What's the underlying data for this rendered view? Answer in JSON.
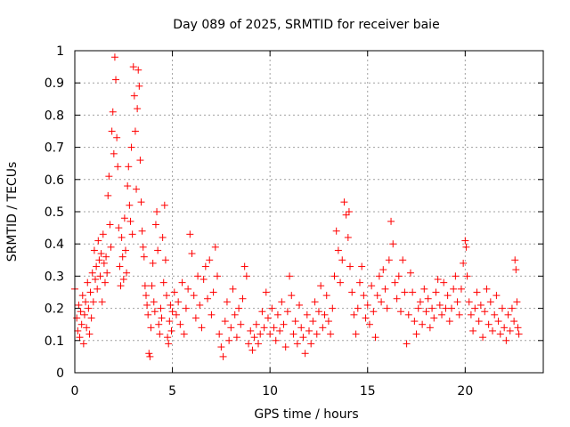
{
  "chart_data": {
    "type": "scatter",
    "title": "Day 089 of 2025, SRMTID for receiver baie",
    "xlabel": "GPS time / hours",
    "ylabel": "SRMTID / TECUs",
    "xlim": [
      0,
      24
    ],
    "ylim": [
      0,
      1
    ],
    "xticks": [
      0,
      5,
      10,
      15,
      20
    ],
    "xtick_labels": [
      "0",
      "5",
      "10",
      "15",
      "20"
    ],
    "yticks": [
      0,
      0.1,
      0.2,
      0.3,
      0.4,
      0.5,
      0.6,
      0.7,
      0.8,
      0.9,
      1
    ],
    "ytick_labels": [
      "0",
      "0.1",
      "0.2",
      "0.3",
      "0.4",
      "0.5",
      "0.6",
      "0.7",
      "0.8",
      "0.9",
      "1"
    ],
    "grid": true,
    "marker": "+",
    "marker_color": "#ff0000",
    "series": [
      {
        "name": "SRMTID",
        "points": [
          [
            0.0,
            0.26
          ],
          [
            0.1,
            0.17
          ],
          [
            0.15,
            0.13
          ],
          [
            0.2,
            0.21
          ],
          [
            0.25,
            0.11
          ],
          [
            0.3,
            0.19
          ],
          [
            0.35,
            0.15
          ],
          [
            0.4,
            0.24
          ],
          [
            0.45,
            0.09
          ],
          [
            0.5,
            0.18
          ],
          [
            0.55,
            0.22
          ],
          [
            0.6,
            0.14
          ],
          [
            0.65,
            0.28
          ],
          [
            0.7,
            0.2
          ],
          [
            0.75,
            0.12
          ],
          [
            0.8,
            0.25
          ],
          [
            0.85,
            0.17
          ],
          [
            0.9,
            0.31
          ],
          [
            0.95,
            0.22
          ],
          [
            1.0,
            0.38
          ],
          [
            1.05,
            0.29
          ],
          [
            1.1,
            0.33
          ],
          [
            1.15,
            0.26
          ],
          [
            1.2,
            0.41
          ],
          [
            1.25,
            0.35
          ],
          [
            1.3,
            0.3
          ],
          [
            1.35,
            0.37
          ],
          [
            1.4,
            0.22
          ],
          [
            1.45,
            0.43
          ],
          [
            1.5,
            0.34
          ],
          [
            1.55,
            0.28
          ],
          [
            1.6,
            0.36
          ],
          [
            1.65,
            0.31
          ],
          [
            1.7,
            0.55
          ],
          [
            1.75,
            0.61
          ],
          [
            1.8,
            0.46
          ],
          [
            1.85,
            0.39
          ],
          [
            1.9,
            0.75
          ],
          [
            1.95,
            0.81
          ],
          [
            2.0,
            0.68
          ],
          [
            2.05,
            0.98
          ],
          [
            2.1,
            0.91
          ],
          [
            2.15,
            0.73
          ],
          [
            2.2,
            0.64
          ],
          [
            2.25,
            0.45
          ],
          [
            2.3,
            0.33
          ],
          [
            2.35,
            0.27
          ],
          [
            2.4,
            0.42
          ],
          [
            2.45,
            0.36
          ],
          [
            2.5,
            0.29
          ],
          [
            2.55,
            0.48
          ],
          [
            2.6,
            0.38
          ],
          [
            2.65,
            0.31
          ],
          [
            2.7,
            0.58
          ],
          [
            2.75,
            0.64
          ],
          [
            2.8,
            0.52
          ],
          [
            2.85,
            0.47
          ],
          [
            2.9,
            0.7
          ],
          [
            2.95,
            0.43
          ],
          [
            3.0,
            0.95
          ],
          [
            3.05,
            0.86
          ],
          [
            3.1,
            0.75
          ],
          [
            3.15,
            0.57
          ],
          [
            3.2,
            0.82
          ],
          [
            3.25,
            0.94
          ],
          [
            3.3,
            0.89
          ],
          [
            3.35,
            0.66
          ],
          [
            3.4,
            0.53
          ],
          [
            3.45,
            0.44
          ],
          [
            3.5,
            0.39
          ],
          [
            3.55,
            0.36
          ],
          [
            3.6,
            0.27
          ],
          [
            3.65,
            0.24
          ],
          [
            3.7,
            0.21
          ],
          [
            3.75,
            0.18
          ],
          [
            3.8,
            0.06
          ],
          [
            3.85,
            0.05
          ],
          [
            3.9,
            0.14
          ],
          [
            3.95,
            0.27
          ],
          [
            4.0,
            0.34
          ],
          [
            4.05,
            0.22
          ],
          [
            4.1,
            0.19
          ],
          [
            4.15,
            0.46
          ],
          [
            4.2,
            0.5
          ],
          [
            4.25,
            0.38
          ],
          [
            4.3,
            0.15
          ],
          [
            4.35,
            0.12
          ],
          [
            4.4,
            0.2
          ],
          [
            4.45,
            0.17
          ],
          [
            4.5,
            0.42
          ],
          [
            4.55,
            0.28
          ],
          [
            4.6,
            0.52
          ],
          [
            4.65,
            0.35
          ],
          [
            4.7,
            0.24
          ],
          [
            4.75,
            0.11
          ],
          [
            4.8,
            0.09
          ],
          [
            4.85,
            0.16
          ],
          [
            4.9,
            0.21
          ],
          [
            4.95,
            0.13
          ],
          [
            5.0,
            0.19
          ],
          [
            5.1,
            0.25
          ],
          [
            5.2,
            0.18
          ],
          [
            5.3,
            0.22
          ],
          [
            5.4,
            0.15
          ],
          [
            5.5,
            0.28
          ],
          [
            5.6,
            0.12
          ],
          [
            5.7,
            0.2
          ],
          [
            5.8,
            0.26
          ],
          [
            5.9,
            0.43
          ],
          [
            6.0,
            0.37
          ],
          [
            6.1,
            0.24
          ],
          [
            6.2,
            0.17
          ],
          [
            6.3,
            0.3
          ],
          [
            6.4,
            0.21
          ],
          [
            6.5,
            0.14
          ],
          [
            6.6,
            0.29
          ],
          [
            6.7,
            0.33
          ],
          [
            6.8,
            0.23
          ],
          [
            6.9,
            0.35
          ],
          [
            7.0,
            0.18
          ],
          [
            7.1,
            0.25
          ],
          [
            7.2,
            0.39
          ],
          [
            7.3,
            0.3
          ],
          [
            7.4,
            0.12
          ],
          [
            7.5,
            0.08
          ],
          [
            7.6,
            0.05
          ],
          [
            7.7,
            0.16
          ],
          [
            7.8,
            0.22
          ],
          [
            7.9,
            0.1
          ],
          [
            8.0,
            0.14
          ],
          [
            8.1,
            0.26
          ],
          [
            8.2,
            0.18
          ],
          [
            8.3,
            0.11
          ],
          [
            8.4,
            0.2
          ],
          [
            8.5,
            0.15
          ],
          [
            8.6,
            0.23
          ],
          [
            8.7,
            0.33
          ],
          [
            8.8,
            0.3
          ],
          [
            8.9,
            0.09
          ],
          [
            9.0,
            0.13
          ],
          [
            9.1,
            0.07
          ],
          [
            9.2,
            0.11
          ],
          [
            9.3,
            0.15
          ],
          [
            9.4,
            0.09
          ],
          [
            9.5,
            0.12
          ],
          [
            9.6,
            0.19
          ],
          [
            9.7,
            0.14
          ],
          [
            9.8,
            0.25
          ],
          [
            9.9,
            0.17
          ],
          [
            10.0,
            0.12
          ],
          [
            10.1,
            0.2
          ],
          [
            10.2,
            0.14
          ],
          [
            10.3,
            0.1
          ],
          [
            10.4,
            0.18
          ],
          [
            10.5,
            0.13
          ],
          [
            10.6,
            0.22
          ],
          [
            10.7,
            0.15
          ],
          [
            10.8,
            0.08
          ],
          [
            10.9,
            0.19
          ],
          [
            11.0,
            0.3
          ],
          [
            11.1,
            0.24
          ],
          [
            11.2,
            0.12
          ],
          [
            11.3,
            0.16
          ],
          [
            11.4,
            0.09
          ],
          [
            11.5,
            0.21
          ],
          [
            11.6,
            0.14
          ],
          [
            11.7,
            0.11
          ],
          [
            11.8,
            0.06
          ],
          [
            11.9,
            0.18
          ],
          [
            12.0,
            0.13
          ],
          [
            12.1,
            0.09
          ],
          [
            12.2,
            0.16
          ],
          [
            12.3,
            0.22
          ],
          [
            12.4,
            0.12
          ],
          [
            12.5,
            0.19
          ],
          [
            12.6,
            0.27
          ],
          [
            12.7,
            0.14
          ],
          [
            12.8,
            0.18
          ],
          [
            12.9,
            0.24
          ],
          [
            13.0,
            0.16
          ],
          [
            13.1,
            0.12
          ],
          [
            13.2,
            0.2
          ],
          [
            13.3,
            0.3
          ],
          [
            13.4,
            0.44
          ],
          [
            13.5,
            0.38
          ],
          [
            13.6,
            0.28
          ],
          [
            13.7,
            0.35
          ],
          [
            13.8,
            0.53
          ],
          [
            13.9,
            0.49
          ],
          [
            14.0,
            0.42
          ],
          [
            14.05,
            0.5
          ],
          [
            14.1,
            0.33
          ],
          [
            14.2,
            0.25
          ],
          [
            14.3,
            0.18
          ],
          [
            14.4,
            0.12
          ],
          [
            14.5,
            0.2
          ],
          [
            14.6,
            0.28
          ],
          [
            14.7,
            0.33
          ],
          [
            14.8,
            0.24
          ],
          [
            14.9,
            0.17
          ],
          [
            15.0,
            0.21
          ],
          [
            15.1,
            0.15
          ],
          [
            15.2,
            0.27
          ],
          [
            15.3,
            0.19
          ],
          [
            15.4,
            0.11
          ],
          [
            15.5,
            0.24
          ],
          [
            15.6,
            0.3
          ],
          [
            15.7,
            0.22
          ],
          [
            15.8,
            0.32
          ],
          [
            15.9,
            0.26
          ],
          [
            16.0,
            0.2
          ],
          [
            16.1,
            0.35
          ],
          [
            16.2,
            0.47
          ],
          [
            16.3,
            0.4
          ],
          [
            16.4,
            0.28
          ],
          [
            16.5,
            0.23
          ],
          [
            16.6,
            0.3
          ],
          [
            16.7,
            0.19
          ],
          [
            16.8,
            0.35
          ],
          [
            16.9,
            0.25
          ],
          [
            17.0,
            0.09
          ],
          [
            17.1,
            0.18
          ],
          [
            17.2,
            0.31
          ],
          [
            17.3,
            0.25
          ],
          [
            17.4,
            0.16
          ],
          [
            17.5,
            0.12
          ],
          [
            17.6,
            0.2
          ],
          [
            17.7,
            0.22
          ],
          [
            17.8,
            0.15
          ],
          [
            17.9,
            0.26
          ],
          [
            18.0,
            0.19
          ],
          [
            18.1,
            0.23
          ],
          [
            18.2,
            0.14
          ],
          [
            18.3,
            0.2
          ],
          [
            18.4,
            0.17
          ],
          [
            18.5,
            0.25
          ],
          [
            18.6,
            0.29
          ],
          [
            18.7,
            0.21
          ],
          [
            18.8,
            0.18
          ],
          [
            18.9,
            0.28
          ],
          [
            19.0,
            0.2
          ],
          [
            19.1,
            0.24
          ],
          [
            19.2,
            0.16
          ],
          [
            19.3,
            0.2
          ],
          [
            19.4,
            0.26
          ],
          [
            19.5,
            0.3
          ],
          [
            19.6,
            0.22
          ],
          [
            19.7,
            0.18
          ],
          [
            19.8,
            0.26
          ],
          [
            19.9,
            0.34
          ],
          [
            20.0,
            0.41
          ],
          [
            20.05,
            0.39
          ],
          [
            20.1,
            0.3
          ],
          [
            20.2,
            0.22
          ],
          [
            20.3,
            0.18
          ],
          [
            20.4,
            0.13
          ],
          [
            20.5,
            0.2
          ],
          [
            20.6,
            0.25
          ],
          [
            20.7,
            0.16
          ],
          [
            20.8,
            0.21
          ],
          [
            20.9,
            0.11
          ],
          [
            21.0,
            0.19
          ],
          [
            21.1,
            0.26
          ],
          [
            21.2,
            0.15
          ],
          [
            21.3,
            0.22
          ],
          [
            21.4,
            0.13
          ],
          [
            21.5,
            0.18
          ],
          [
            21.6,
            0.24
          ],
          [
            21.7,
            0.16
          ],
          [
            21.8,
            0.12
          ],
          [
            21.9,
            0.2
          ],
          [
            22.0,
            0.14
          ],
          [
            22.1,
            0.1
          ],
          [
            22.2,
            0.18
          ],
          [
            22.3,
            0.13
          ],
          [
            22.4,
            0.2
          ],
          [
            22.5,
            0.16
          ],
          [
            22.55,
            0.35
          ],
          [
            22.6,
            0.32
          ],
          [
            22.65,
            0.22
          ],
          [
            22.7,
            0.14
          ],
          [
            22.75,
            0.12
          ]
        ]
      }
    ]
  }
}
